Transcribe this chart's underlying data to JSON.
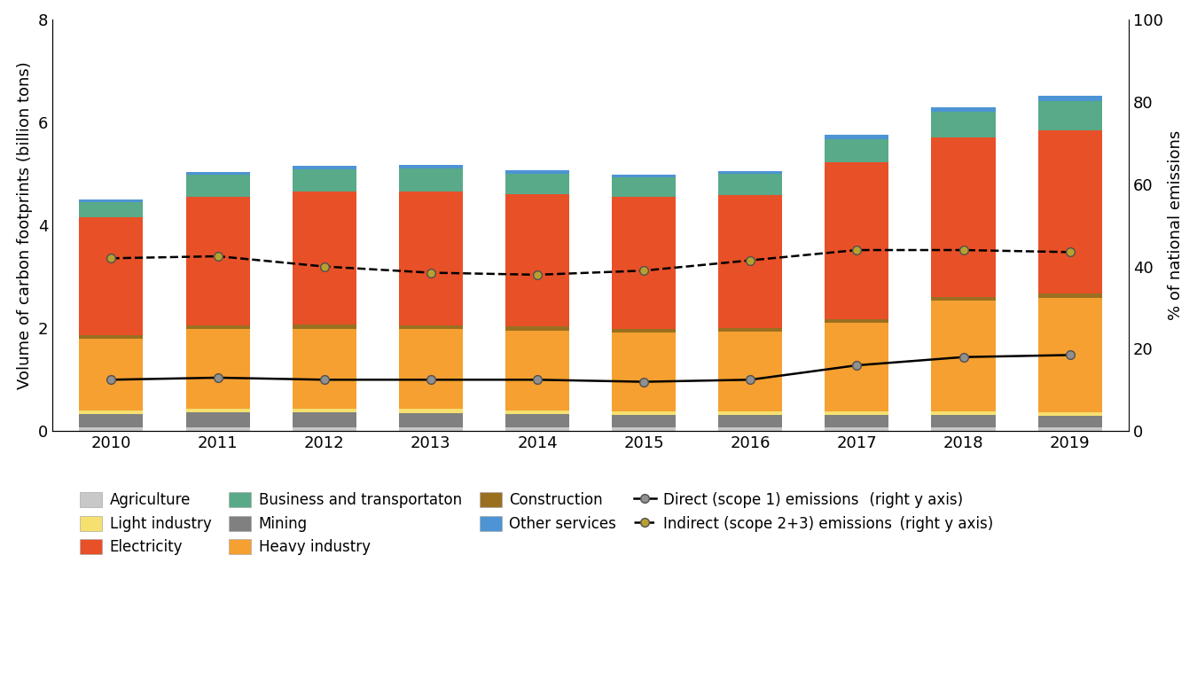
{
  "years": [
    2010,
    2011,
    2012,
    2013,
    2014,
    2015,
    2016,
    2017,
    2018,
    2019
  ],
  "bar_data": {
    "Agriculture": [
      0.08,
      0.08,
      0.08,
      0.08,
      0.08,
      0.07,
      0.07,
      0.07,
      0.07,
      0.07
    ],
    "Mining": [
      0.25,
      0.28,
      0.28,
      0.27,
      0.26,
      0.25,
      0.24,
      0.24,
      0.24,
      0.23
    ],
    "Light industry": [
      0.07,
      0.08,
      0.08,
      0.08,
      0.07,
      0.07,
      0.07,
      0.07,
      0.07,
      0.07
    ],
    "Heavy industry": [
      1.4,
      1.55,
      1.55,
      1.55,
      1.55,
      1.52,
      1.55,
      1.72,
      2.15,
      2.22
    ],
    "Construction": [
      0.07,
      0.07,
      0.08,
      0.08,
      0.07,
      0.07,
      0.07,
      0.07,
      0.08,
      0.08
    ],
    "Electricity": [
      2.28,
      2.5,
      2.58,
      2.6,
      2.58,
      2.58,
      2.58,
      3.05,
      3.1,
      3.18
    ],
    "Business and transportaton": [
      0.3,
      0.42,
      0.43,
      0.44,
      0.4,
      0.37,
      0.42,
      0.46,
      0.5,
      0.57
    ],
    "Other services": [
      0.06,
      0.06,
      0.07,
      0.07,
      0.06,
      0.06,
      0.06,
      0.08,
      0.08,
      0.1
    ]
  },
  "colors": {
    "Agriculture": "#c8c8c8",
    "Mining": "#808080",
    "Light industry": "#f5e070",
    "Heavy industry": "#f5a030",
    "Construction": "#9a7020",
    "Electricity": "#e85028",
    "Business and transportaton": "#58aa88",
    "Other services": "#4d94d4"
  },
  "direct_scope1": [
    12.5,
    13.0,
    12.5,
    12.5,
    12.5,
    12.0,
    12.5,
    16.0,
    18.0,
    18.5
  ],
  "indirect_scope23": [
    42.0,
    42.5,
    40.0,
    38.5,
    38.0,
    39.0,
    41.5,
    44.0,
    44.0,
    43.5
  ],
  "ylabel_left": "Volume of carbon footprints (billion tons)",
  "ylabel_right": "% of national emissions",
  "ylim_left": [
    0,
    8
  ],
  "ylim_right": [
    0,
    100
  ],
  "yticks_left": [
    0,
    2,
    4,
    6,
    8
  ],
  "yticks_right": [
    0,
    20,
    40,
    60,
    80,
    100
  ],
  "bar_order": [
    "Agriculture",
    "Mining",
    "Light industry",
    "Heavy industry",
    "Construction",
    "Electricity",
    "Business and transportaton",
    "Other services"
  ],
  "legend_row1": [
    "Agriculture",
    "Light industry",
    "Electricity",
    "Business and transportaton"
  ],
  "legend_row2": [
    "Mining",
    "Heavy industry",
    "Construction",
    "Other services"
  ],
  "direct_label": "Direct (scope 1) emissions",
  "direct_label_small": " (right y axis)",
  "indirect_label": "Indirect (scope 2+3) emissions",
  "indirect_label_small": " (right y axis)"
}
